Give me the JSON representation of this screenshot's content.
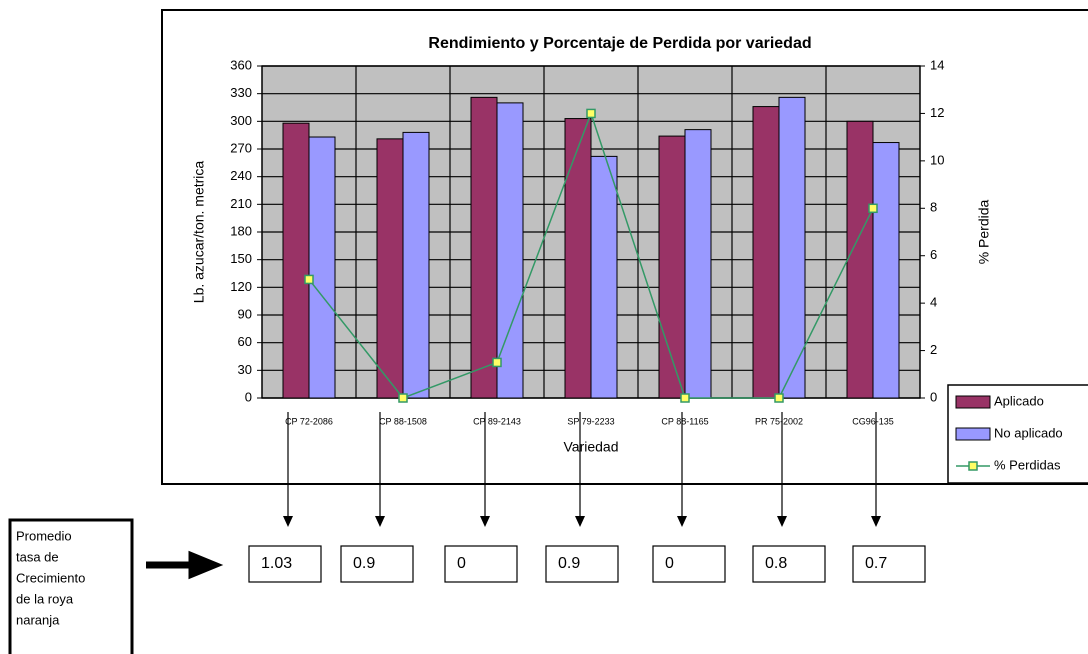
{
  "chart_data": {
    "type": "bar",
    "title": "Rendimiento y Porcentaje de Perdida por variedad",
    "x_label": "Variedad",
    "y_label": "Lb. azucar/ton. metrica",
    "y2_label": "% Perdida",
    "categories": [
      "CP 72-2086",
      "CP 88-1508",
      "CP 89-2143",
      "SP 79-2233",
      "CP 88-1165",
      "PR 75-2002",
      "CG96-135"
    ],
    "series": [
      {
        "name": "Aplicado",
        "type": "bar",
        "color": "#993366",
        "values": [
          298,
          281,
          326,
          303,
          284,
          316,
          300
        ]
      },
      {
        "name": "No aplicado",
        "type": "bar",
        "color": "#9999ff",
        "values": [
          283,
          288,
          320,
          262,
          291,
          326,
          277
        ]
      },
      {
        "name": "% Perdidas",
        "type": "line",
        "axis": "y2",
        "color": "#339966",
        "marker_color": "#ffff66",
        "values": [
          5,
          0,
          1.5,
          12,
          0,
          0,
          8
        ]
      }
    ],
    "ylim": [
      0,
      360
    ],
    "yticks": [
      0,
      30,
      60,
      90,
      120,
      150,
      180,
      210,
      240,
      270,
      300,
      330,
      360
    ],
    "y2lim": [
      0,
      14
    ],
    "y2ticks": [
      0,
      2,
      4,
      6,
      8,
      10,
      12,
      14
    ],
    "grid": true,
    "legend": "right"
  },
  "annotation": {
    "label_lines": [
      "Promedio",
      "tasa de",
      "Crecimiento",
      "de la roya",
      "naranja"
    ],
    "values": [
      1.03,
      0.9,
      0,
      0.9,
      0,
      0.8,
      0.7
    ]
  }
}
